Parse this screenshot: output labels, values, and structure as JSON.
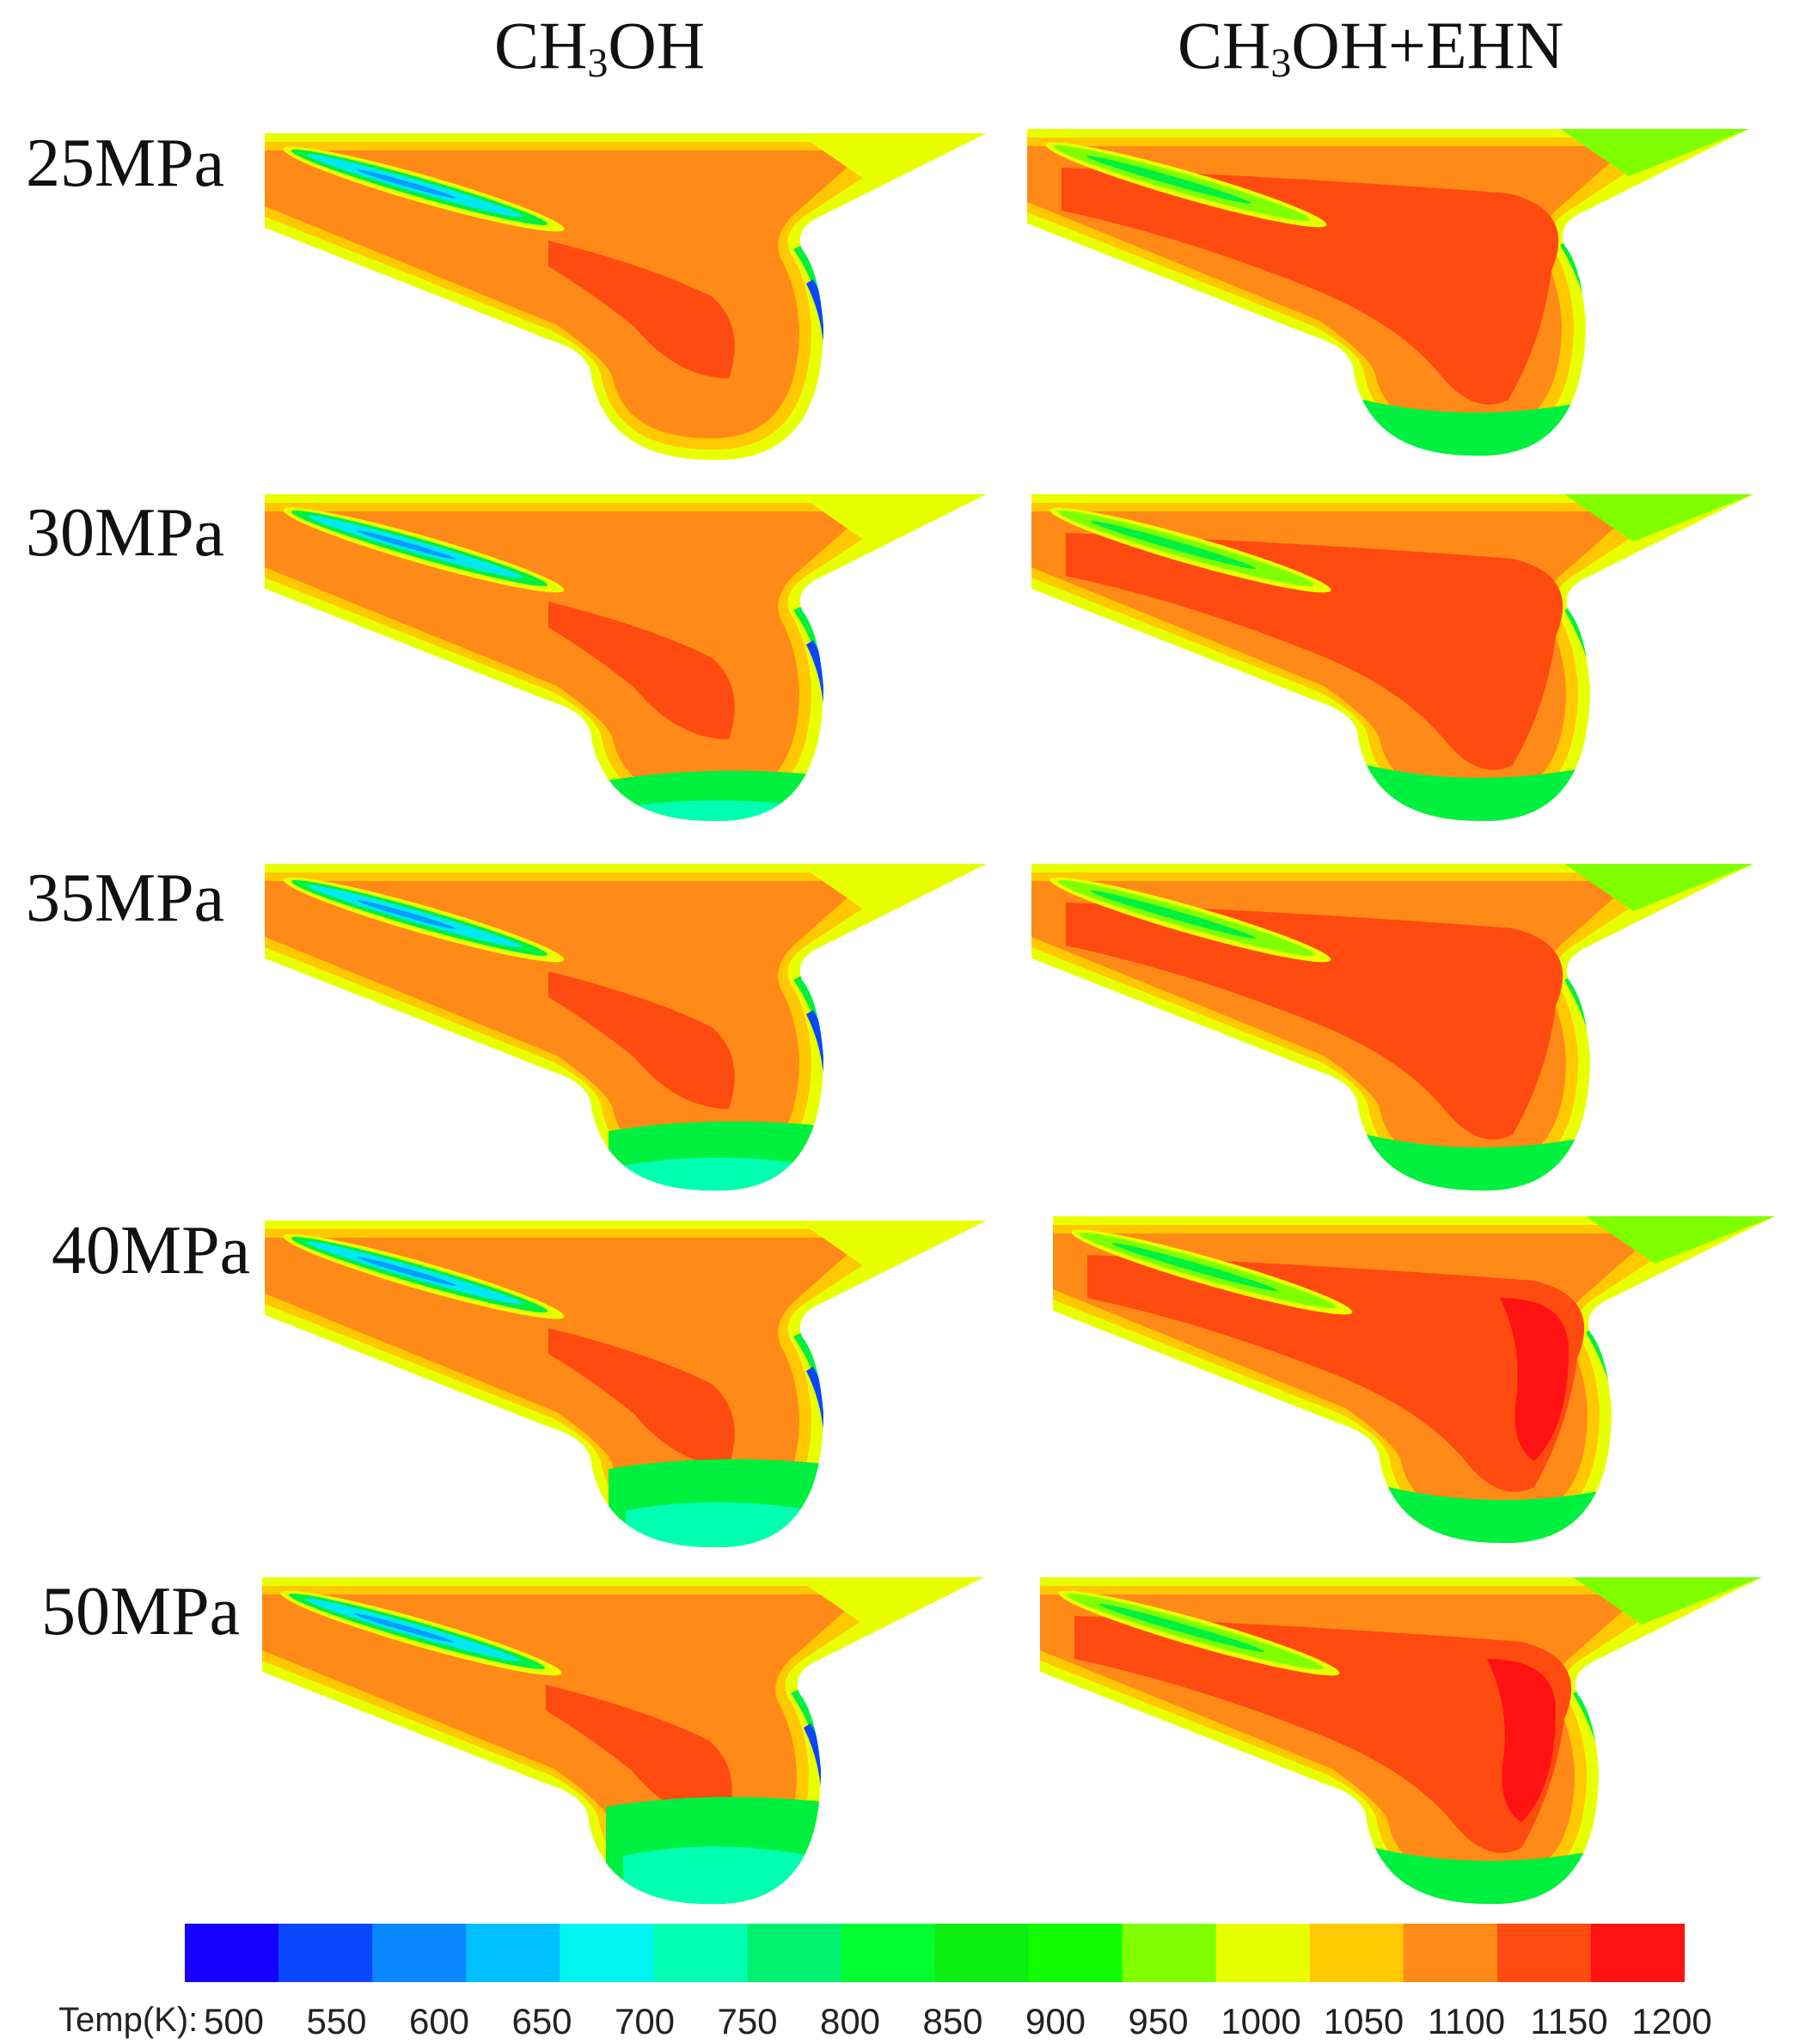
{
  "columns": [
    {
      "base": "CH",
      "sub": "3",
      "rest": "OH"
    },
    {
      "base": "CH",
      "sub": "3",
      "rest": "OH+EHN"
    }
  ],
  "rows": [
    "25MPa",
    "30MPa",
    "35MPa",
    "40MPa",
    "50MPa"
  ],
  "colorbar": {
    "label": "Temp(K):",
    "ticks": [
      "500",
      "550",
      "600",
      "650",
      "700",
      "750",
      "800",
      "850",
      "900",
      "950",
      "1000",
      "1050",
      "1100",
      "1150",
      "1200"
    ],
    "colors": [
      "#1400ff",
      "#0a46ff",
      "#0a86ff",
      "#00c0ff",
      "#00f4f0",
      "#00ffb0",
      "#00f070",
      "#00ff30",
      "#0cee10",
      "#12ff00",
      "#80ff00",
      "#e8ff00",
      "#ffc800",
      "#ff8a18",
      "#ff4a10",
      "#ff1212"
    ]
  }
}
